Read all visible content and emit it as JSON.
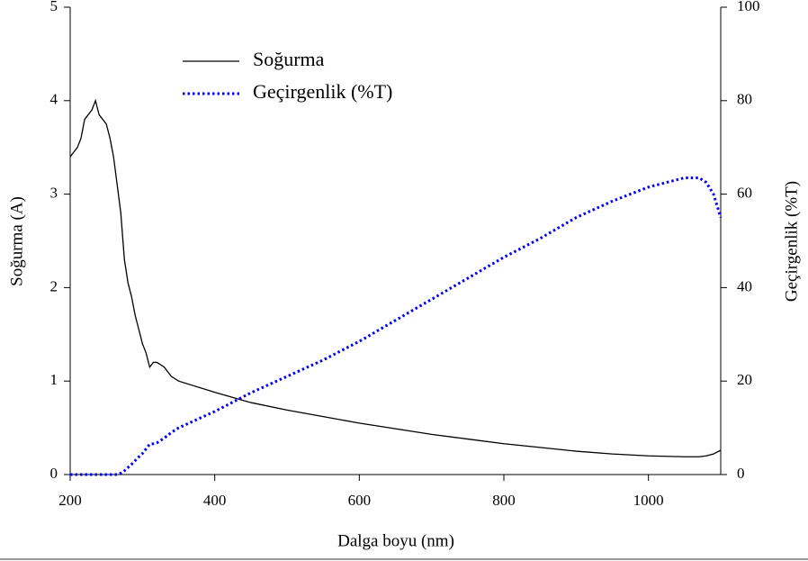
{
  "chart_data": {
    "type": "line",
    "x_label": "Dalga boyu (nm)",
    "y_label": "Soğurma (A)",
    "y2_label": "Geçirgenlik (%T)",
    "x": [
      200,
      205,
      210,
      215,
      220,
      225,
      230,
      235,
      240,
      245,
      250,
      255,
      260,
      265,
      270,
      275,
      280,
      285,
      290,
      295,
      300,
      305,
      310,
      315,
      320,
      330,
      340,
      350,
      400,
      450,
      500,
      550,
      600,
      650,
      700,
      750,
      800,
      850,
      900,
      950,
      1000,
      1050,
      1070,
      1080,
      1090,
      1100
    ],
    "series": [
      {
        "name": "Soğurma",
        "color": "#000000",
        "line_style": "solid",
        "axis": "y",
        "values": [
          3.4,
          3.45,
          3.5,
          3.6,
          3.8,
          3.85,
          3.9,
          4.0,
          3.85,
          3.8,
          3.75,
          3.6,
          3.4,
          3.1,
          2.8,
          2.3,
          2.05,
          1.9,
          1.7,
          1.55,
          1.4,
          1.3,
          1.15,
          1.2,
          1.2,
          1.15,
          1.05,
          1.0,
          0.88,
          0.77,
          0.69,
          0.62,
          0.55,
          0.49,
          0.43,
          0.38,
          0.33,
          0.29,
          0.25,
          0.22,
          0.2,
          0.19,
          0.19,
          0.2,
          0.22,
          0.26
        ]
      },
      {
        "name": "Geçirgenlik (%T)",
        "color": "#0000ff",
        "line_style": "dotted",
        "axis": "y2",
        "values": [
          0,
          0,
          0,
          0,
          0,
          0,
          0,
          0,
          0,
          0,
          0,
          0,
          0,
          0,
          0.3,
          0.8,
          1.5,
          2.2,
          3,
          3.8,
          4.5,
          5.5,
          6.5,
          6.6,
          6.8,
          7.8,
          9,
          10,
          13.5,
          17.5,
          21,
          24.5,
          28.5,
          33,
          37.5,
          42,
          46.5,
          50.5,
          55,
          58.5,
          61.5,
          63.5,
          63.5,
          62.5,
          60,
          55
        ]
      }
    ],
    "xlim": [
      200,
      1100
    ],
    "xticks": [
      200,
      400,
      600,
      800,
      1000
    ],
    "ylim": [
      0,
      5
    ],
    "yticks": [
      0,
      1,
      2,
      3,
      4,
      5
    ],
    "y2lim": [
      0,
      100
    ],
    "y2ticks": [
      0,
      20,
      40,
      60,
      80,
      100
    ],
    "legend": "upper left"
  }
}
